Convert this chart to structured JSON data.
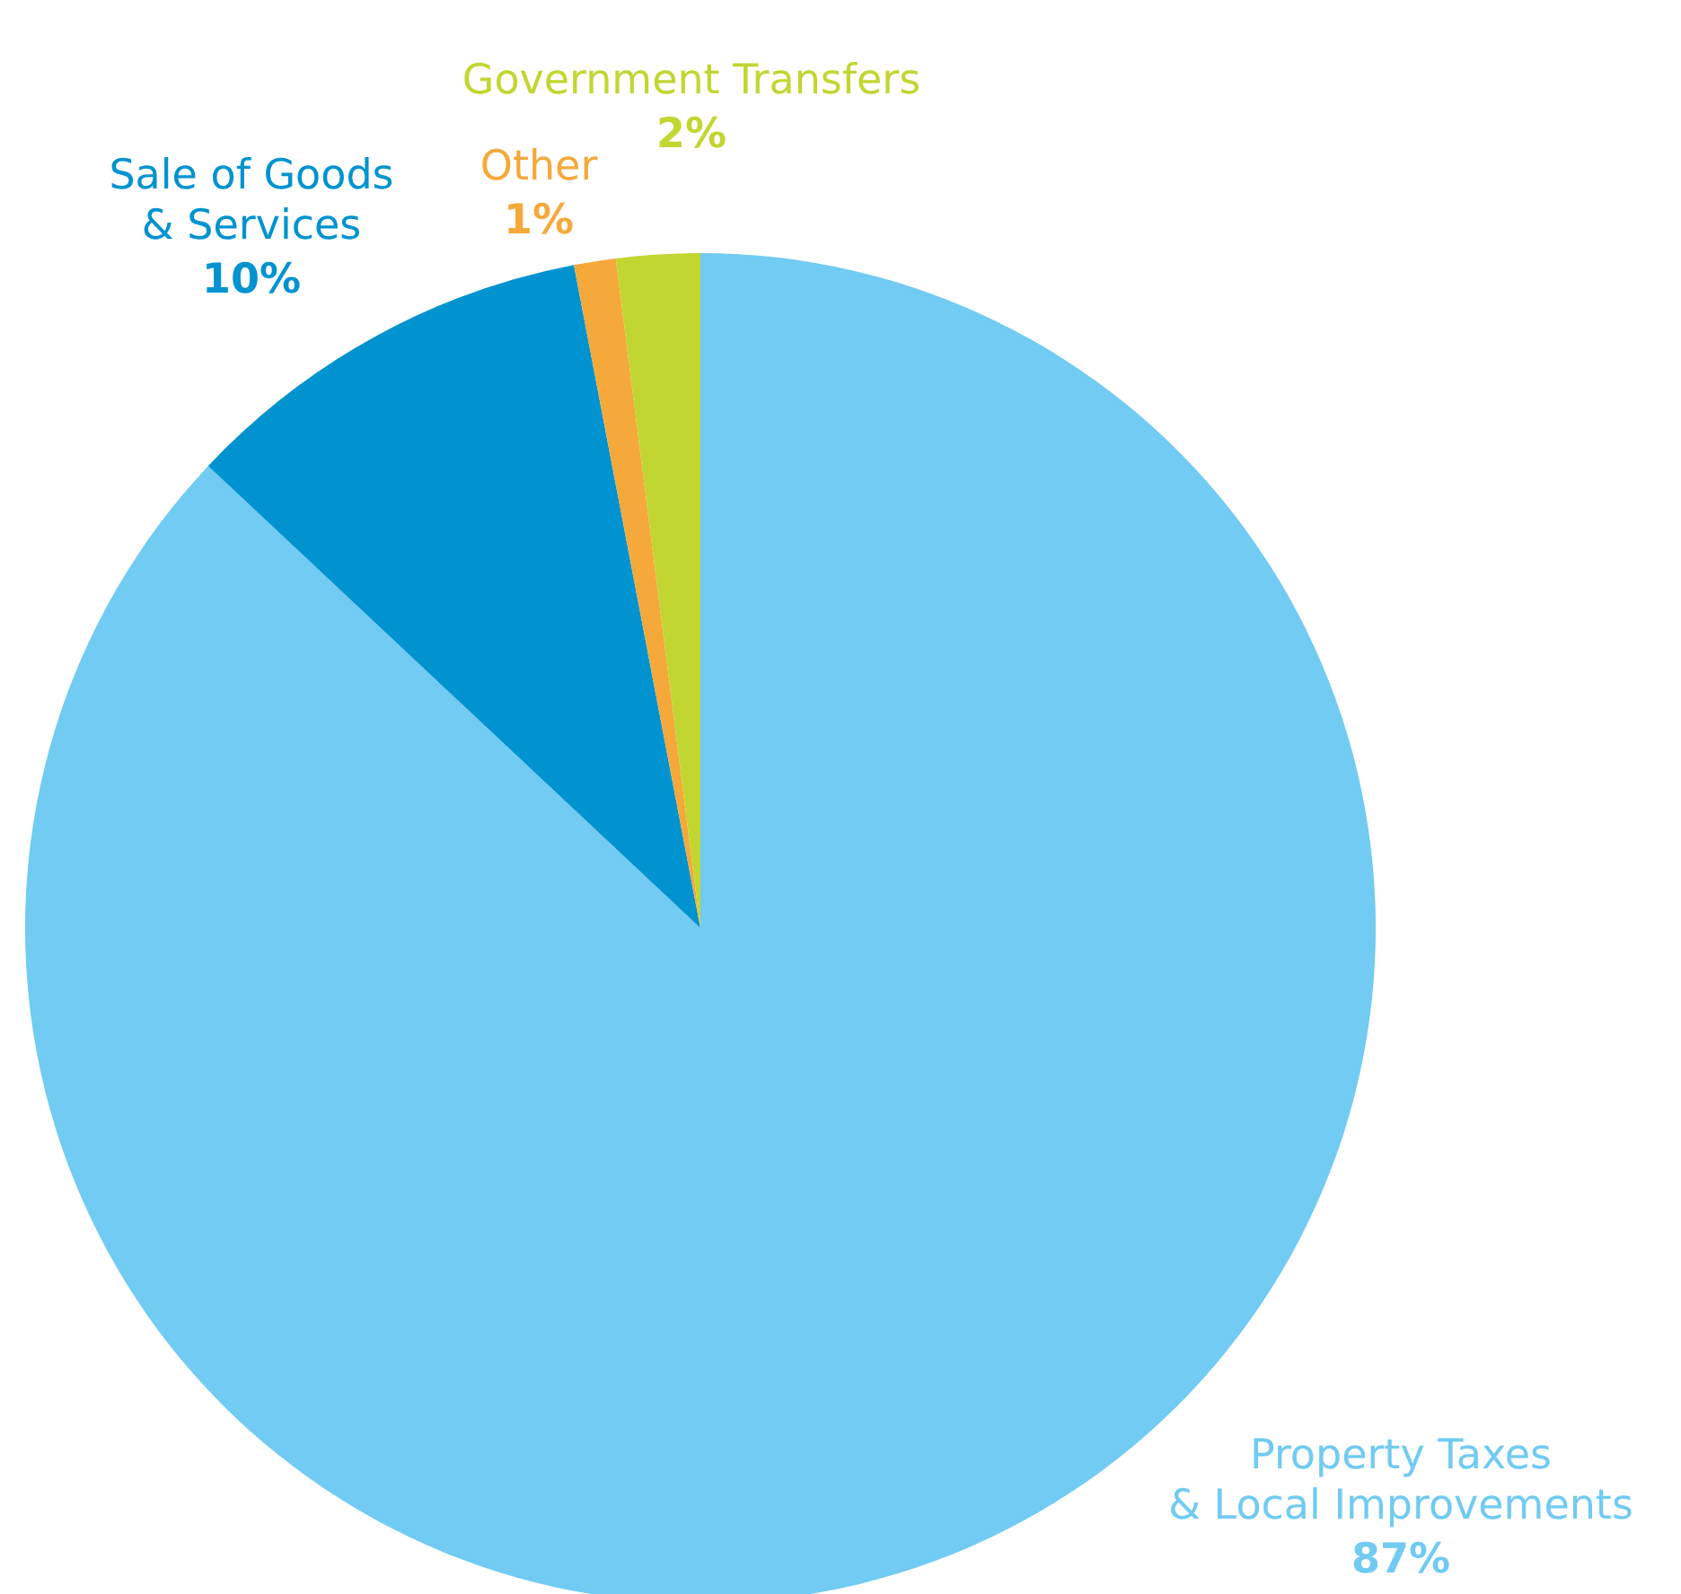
{
  "chart_data": {
    "type": "pie",
    "categories": [
      "Property Taxes\n& Local Improvements",
      "Sale of Goods\n& Services",
      "Other",
      "Government Transfers"
    ],
    "values": [
      87,
      10,
      1,
      2
    ],
    "value_labels": [
      "87%",
      "10%",
      "1%",
      "2%"
    ],
    "colors": [
      "#71cbf2",
      "#0093d0",
      "#f5a93a",
      "#c2d631"
    ]
  }
}
